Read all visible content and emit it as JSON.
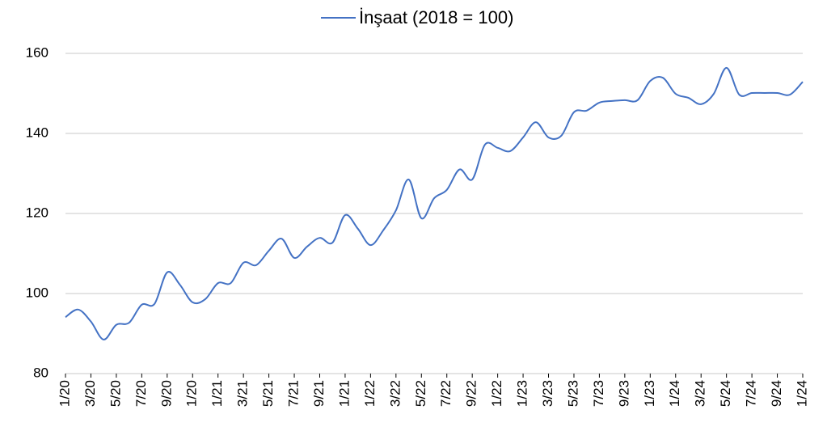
{
  "chart_data": {
    "type": "line",
    "categories": [
      "1/20",
      null,
      "3/20",
      null,
      "5/20",
      null,
      "7/20",
      null,
      "9/20",
      null,
      "1/20",
      null,
      "1/21",
      null,
      "3/21",
      null,
      "5/21",
      null,
      "7/21",
      null,
      "9/21",
      null,
      "1/21",
      null,
      "1/22",
      null,
      "3/22",
      null,
      "5/22",
      null,
      "7/22",
      null,
      "9/22",
      null,
      "1/22",
      null,
      "1/23",
      null,
      "3/23",
      null,
      "5/23",
      null,
      "7/23",
      null,
      "9/23",
      null,
      "1/23",
      null,
      "1/24",
      null,
      "3/24",
      null,
      "5/24",
      null,
      "7/24",
      null,
      "9/24",
      null,
      "1/24"
    ],
    "series": [
      {
        "name": "İnşaat (2018 = 100)",
        "color": "#4472c4",
        "values": [
          94.1,
          96,
          93,
          88.5,
          92.2,
          92.7,
          97.2,
          97.4,
          105.3,
          102.2,
          97.8,
          98.6,
          102.6,
          102.6,
          107.7,
          107.1,
          110.7,
          113.7,
          108.9,
          111.7,
          113.9,
          112.7,
          119.6,
          116.2,
          112.1,
          115.8,
          120.8,
          128.5,
          118.8,
          123.8,
          125.9,
          131,
          128.5,
          137.2,
          136.4,
          135.6,
          139,
          142.8,
          139,
          139.4,
          145.3,
          145.7,
          147.7,
          148.1,
          148.3,
          148.3,
          153.1,
          153.9,
          149.9,
          148.9,
          147.3,
          149.9,
          156.4,
          149.7,
          150.1,
          150.1,
          150.1,
          149.7,
          152.9
        ]
      }
    ],
    "ylim": [
      80,
      160
    ],
    "yticks": [
      80,
      100,
      120,
      140,
      160
    ],
    "grid": true,
    "legend": "top"
  }
}
